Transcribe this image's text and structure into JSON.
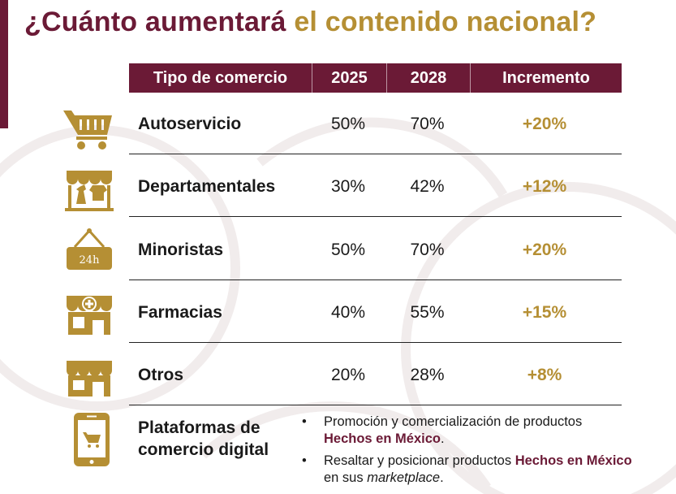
{
  "title": {
    "part1": "¿Cuánto aumentará",
    "part2": "el contenido nacional?"
  },
  "colors": {
    "wine": "#6b1a36",
    "gold": "#b58f34"
  },
  "table": {
    "headers": [
      "Tipo de comercio",
      "2025",
      "2028",
      "Incremento"
    ],
    "rows": [
      {
        "icon": "shopping-cart-icon",
        "type": "Autoservicio",
        "y2025": "50%",
        "y2028": "70%",
        "increment": "+20%"
      },
      {
        "icon": "department-store-icon",
        "type": "Departamentales",
        "y2025": "30%",
        "y2028": "42%",
        "increment": "+12%"
      },
      {
        "icon": "open-24h-sign-icon",
        "icon_text": "24h",
        "type": "Minoristas",
        "y2025": "50%",
        "y2028": "70%",
        "increment": "+20%"
      },
      {
        "icon": "pharmacy-icon",
        "type": "Farmacias",
        "y2025": "40%",
        "y2028": "55%",
        "increment": "+15%"
      },
      {
        "icon": "shop-icon",
        "type": "Otros",
        "y2025": "20%",
        "y2028": "28%",
        "increment": "+8%"
      }
    ]
  },
  "digital": {
    "icon": "smartphone-cart-icon",
    "label_line1": "Plataformas de",
    "label_line2": "comercio digital",
    "bullet1": {
      "text": "Promoción y comercialización de productos",
      "highlight": "Hechos en México",
      "end": "."
    },
    "bullet2": {
      "text": "Resaltar y posicionar productos",
      "highlight": "Hechos en México",
      "mid": "en sus",
      "italic": "marketplace",
      "end": "."
    }
  }
}
